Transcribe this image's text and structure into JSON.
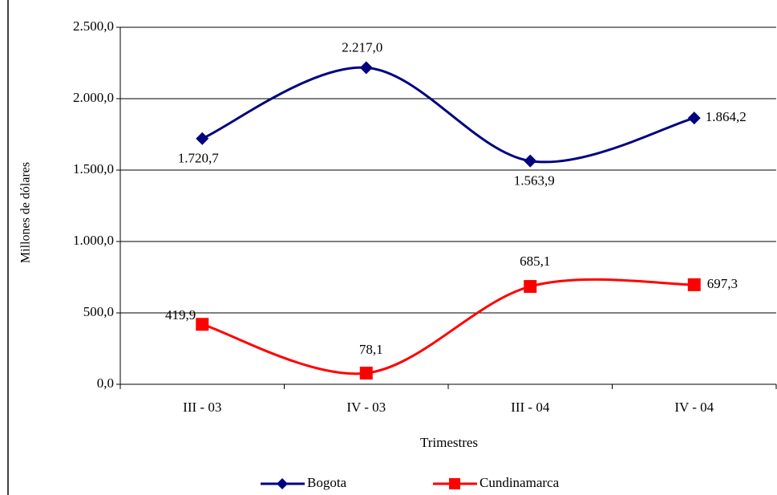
{
  "chart_data": {
    "type": "line",
    "categories": [
      "III - 03",
      "IV - 03",
      "III - 04",
      "IV - 04"
    ],
    "series": [
      {
        "name": "Bogota",
        "color": "#000080",
        "values": [
          1720.7,
          2217.0,
          1563.9,
          1864.2
        ],
        "value_labels": [
          "1.720,7",
          "2.217,0",
          "1.563,9",
          "1.864,2"
        ]
      },
      {
        "name": "Cundinamarca",
        "color": "#ff0000",
        "values": [
          419.9,
          78.1,
          685.1,
          697.3
        ],
        "value_labels": [
          "419,9",
          "78,1",
          "685,1",
          "697,3"
        ]
      }
    ],
    "ylim": [
      0,
      2500
    ],
    "yticks": [
      {
        "value": 0,
        "label": "0,0"
      },
      {
        "value": 500,
        "label": "500,0"
      },
      {
        "value": 1000,
        "label": "1.000,0"
      },
      {
        "value": 1500,
        "label": "1.500,0"
      },
      {
        "value": 2000,
        "label": "2.000,0"
      },
      {
        "value": 2500,
        "label": "2.500,0"
      }
    ],
    "xlabel": "Trimestres",
    "ylabel": "Millones de dólares",
    "grid": true,
    "legend": "bottom"
  }
}
